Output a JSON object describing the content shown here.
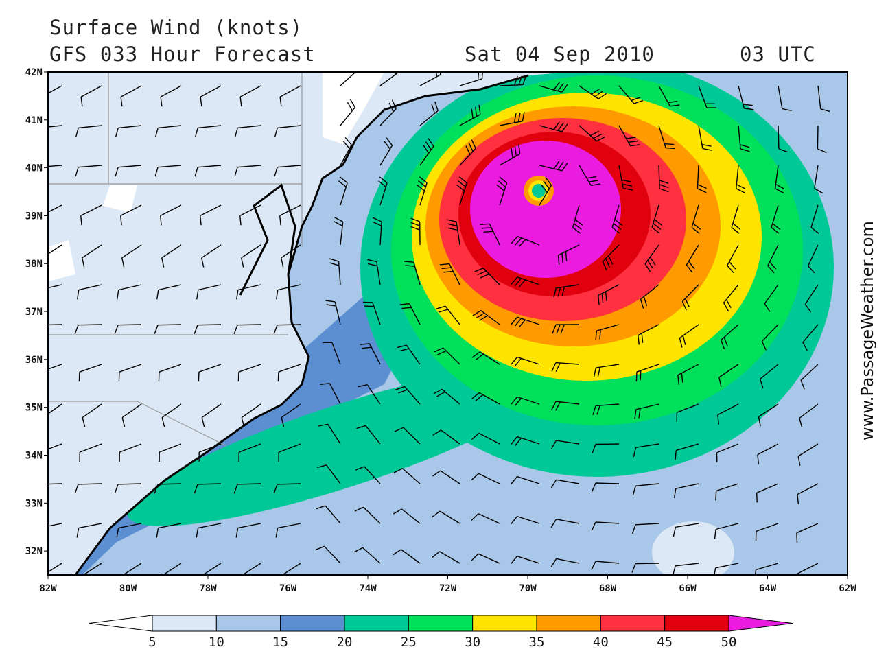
{
  "header": {
    "title": "Surface Wind (knots)",
    "subtitle": "GFS 033 Hour Forecast",
    "date": "Sat 04 Sep 2010",
    "time": "03 UTC"
  },
  "map": {
    "xlim": [
      -82,
      -62
    ],
    "ylim": [
      31.5,
      42
    ],
    "xticks": [
      {
        "value": -82,
        "label": "82W"
      },
      {
        "value": -80,
        "label": "80W"
      },
      {
        "value": -78,
        "label": "78W"
      },
      {
        "value": -76,
        "label": "76W"
      },
      {
        "value": -74,
        "label": "74W"
      },
      {
        "value": -72,
        "label": "72W"
      },
      {
        "value": -70,
        "label": "70W"
      },
      {
        "value": -68,
        "label": "68W"
      },
      {
        "value": -66,
        "label": "66W"
      },
      {
        "value": -64,
        "label": "64W"
      },
      {
        "value": -62,
        "label": "62W"
      }
    ],
    "yticks": [
      {
        "value": 32,
        "label": "32N"
      },
      {
        "value": 33,
        "label": "33N"
      },
      {
        "value": 34,
        "label": "34N"
      },
      {
        "value": 35,
        "label": "35N"
      },
      {
        "value": 36,
        "label": "36N"
      },
      {
        "value": 37,
        "label": "37N"
      },
      {
        "value": 38,
        "label": "38N"
      },
      {
        "value": 39,
        "label": "39N"
      },
      {
        "value": 40,
        "label": "40N"
      },
      {
        "value": 41,
        "label": "41N"
      },
      {
        "value": 42,
        "label": "42N"
      }
    ]
  },
  "colorbar": {
    "levels": [
      5,
      10,
      15,
      20,
      25,
      30,
      35,
      40,
      45,
      50
    ],
    "colors": [
      "#ffffff",
      "#dce8f5",
      "#a9c7e8",
      "#5b8fd2",
      "#00c896",
      "#00e05a",
      "#ffe400",
      "#ff9a00",
      "#ff3040",
      "#e0000e",
      "#ea1ce0"
    ]
  },
  "watermark": "www.PassageWeather.com"
}
